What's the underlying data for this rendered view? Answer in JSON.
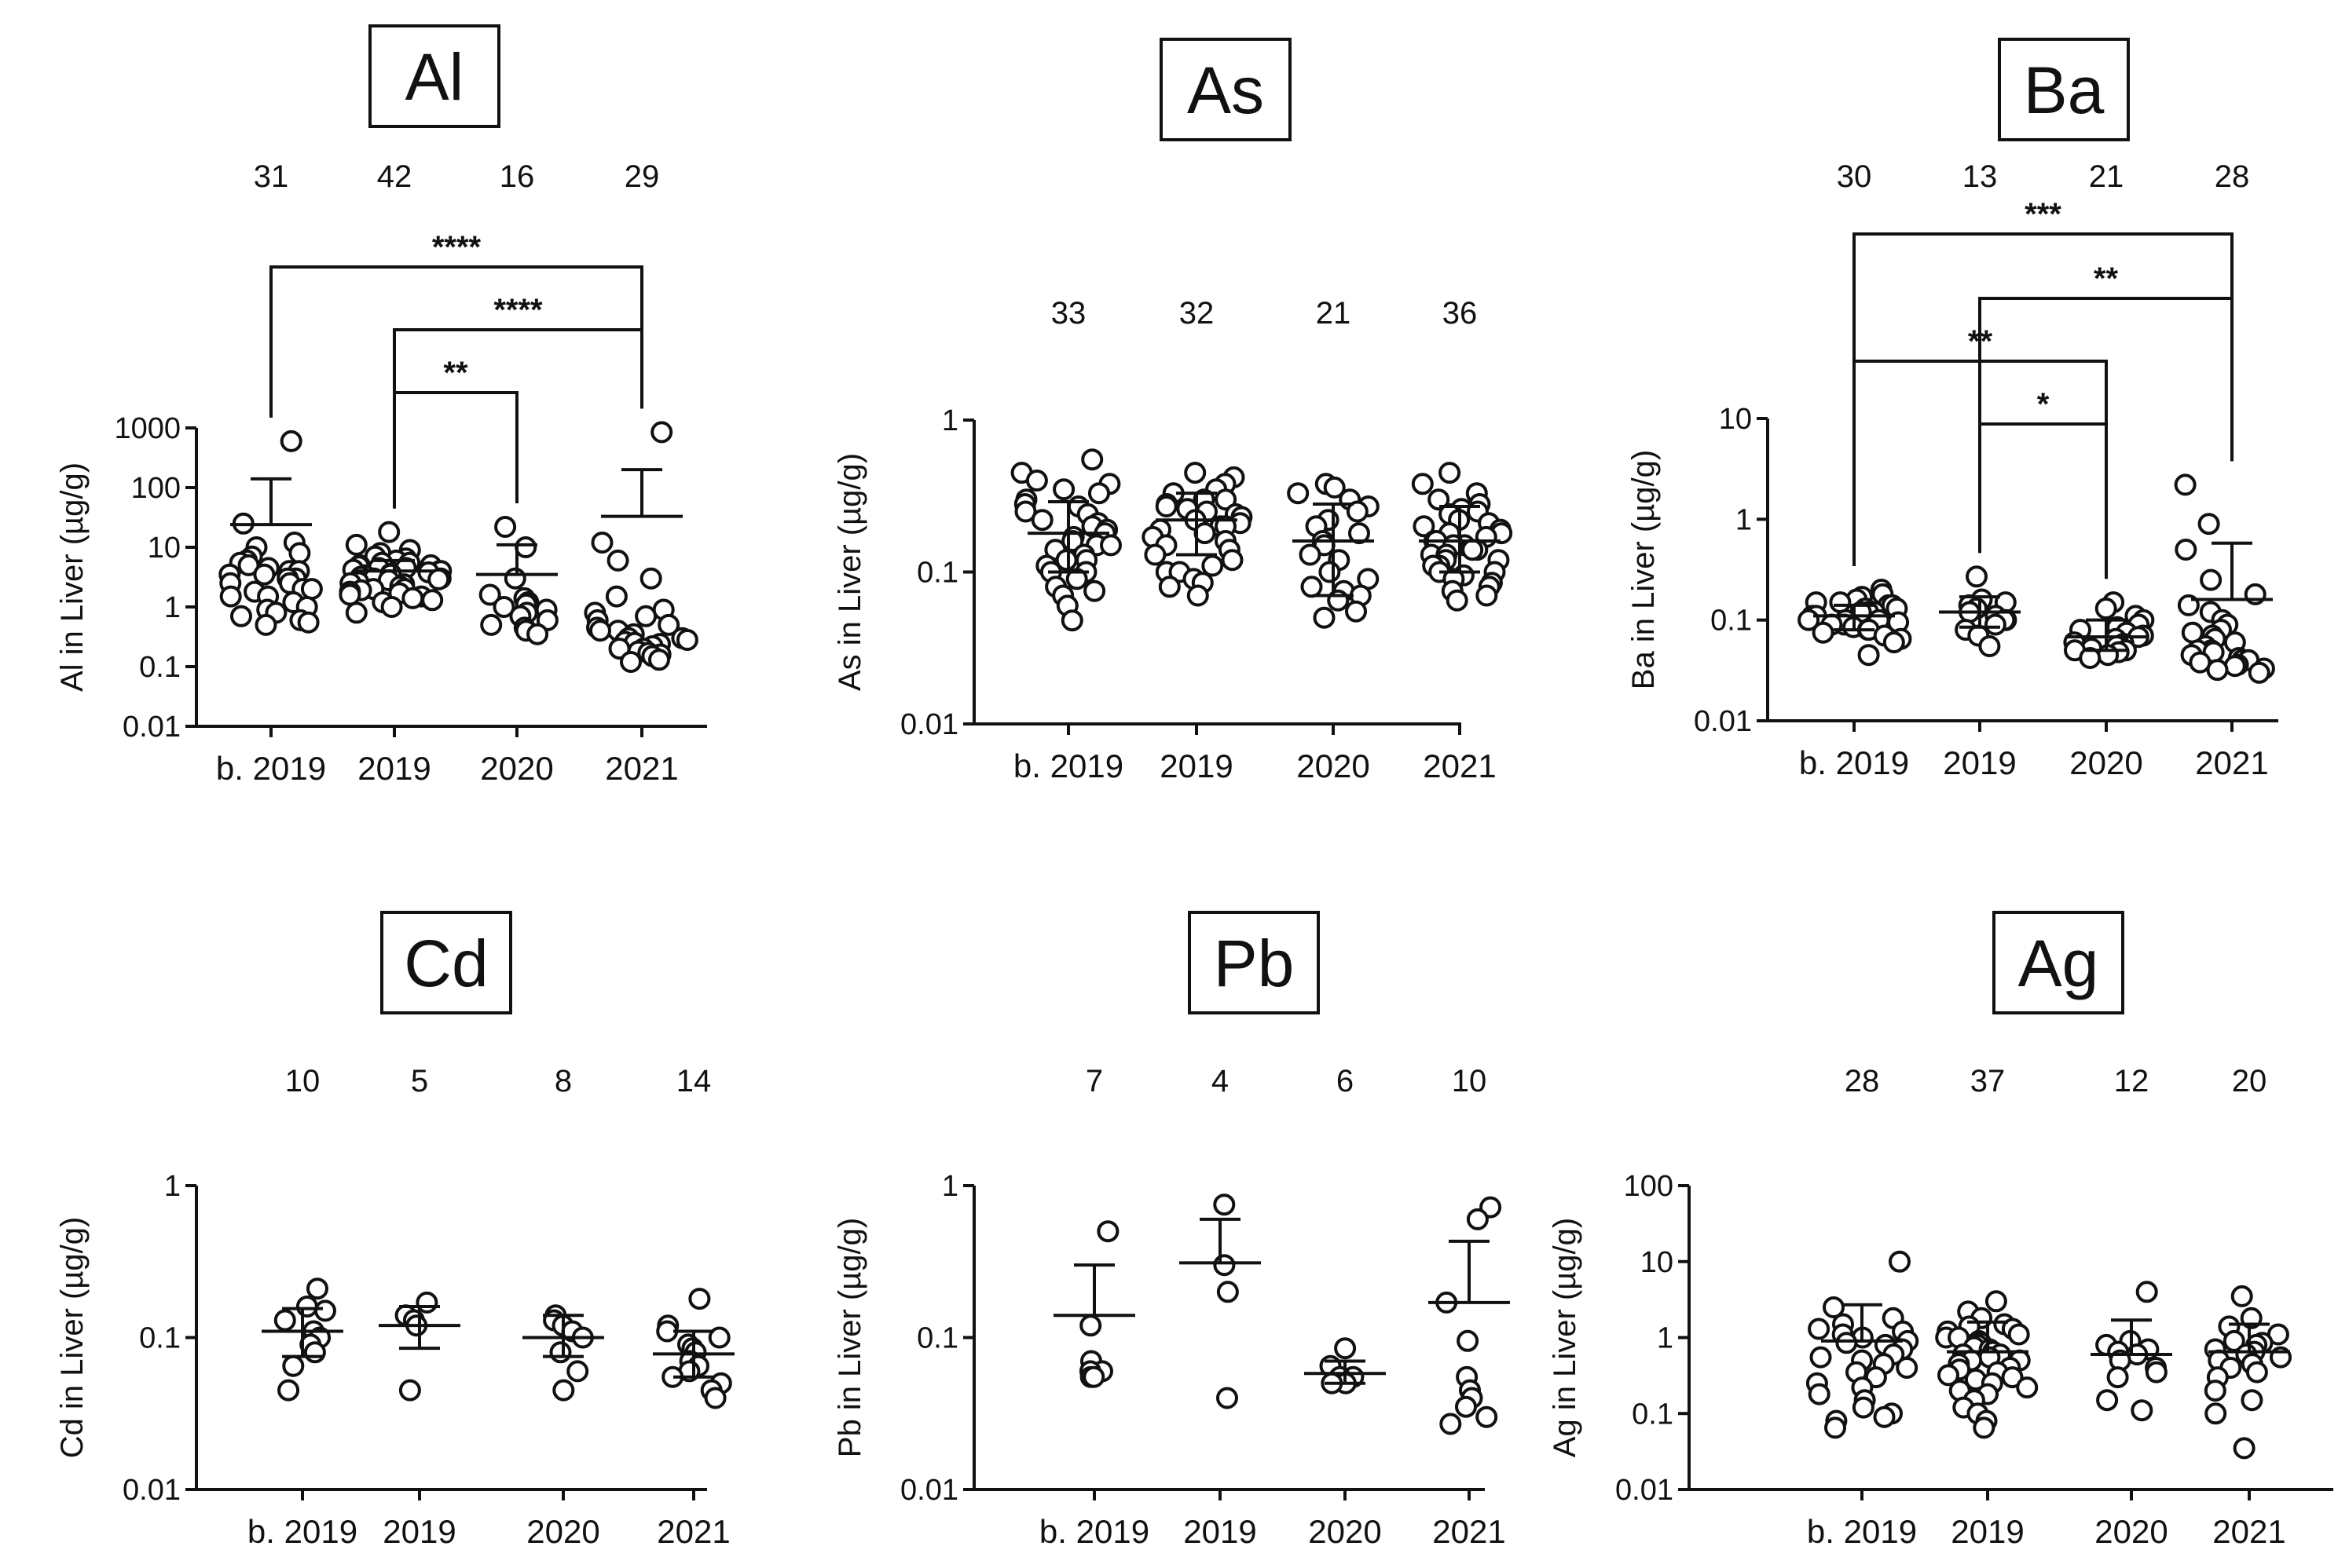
{
  "figure": {
    "background": "#ffffff",
    "ink": "#111111"
  },
  "chart_data": [
    {
      "type": "scatter",
      "title": "Al",
      "ylabel": "Al in Liver (µg/g)",
      "scale": "log",
      "ylim": [
        0.01,
        1000
      ],
      "yticks": [
        "0.01",
        "0.1",
        "1",
        "10",
        "100",
        "1000"
      ],
      "categories": [
        "b. 2019",
        "2019",
        "2020",
        "2021"
      ],
      "n": [
        "31",
        "42",
        "16",
        "29"
      ],
      "summary": [
        {
          "mean": 24,
          "sd_upper": 140
        },
        {
          "mean": 4,
          "sd_upper": 6
        },
        {
          "mean": 3.5,
          "sd_upper": 11
        },
        {
          "mean": 33,
          "sd_upper": 200
        }
      ],
      "points": [
        [
          600,
          25,
          12,
          10,
          8,
          7,
          6,
          5.5,
          5,
          4.5,
          4,
          4,
          3.5,
          3.5,
          3,
          3,
          2.5,
          2.5,
          2,
          2,
          1.8,
          1.5,
          1.5,
          1.2,
          1,
          0.9,
          0.8,
          0.7,
          0.6,
          0.55,
          0.5
        ],
        [
          18,
          11,
          9,
          8,
          7,
          6.5,
          6,
          5.5,
          5.5,
          5,
          5,
          4.8,
          4.5,
          4.5,
          4.2,
          4,
          4,
          3.8,
          3.6,
          3.5,
          3.4,
          3.2,
          3,
          3,
          2.9,
          2.8,
          2.6,
          2.5,
          2.4,
          2.2,
          2,
          2,
          1.9,
          1.8,
          1.7,
          1.6,
          1.5,
          1.4,
          1.3,
          1.2,
          1,
          0.8
        ],
        [
          22,
          10,
          3,
          1.6,
          1.4,
          1.2,
          1.1,
          1,
          0.9,
          0.8,
          0.7,
          0.6,
          0.5,
          0.45,
          0.4,
          0.35
        ],
        [
          850,
          12,
          6,
          3,
          1.5,
          0.9,
          0.8,
          0.7,
          0.6,
          0.5,
          0.45,
          0.4,
          0.4,
          0.35,
          0.3,
          0.3,
          0.28,
          0.26,
          0.25,
          0.24,
          0.22,
          0.2,
          0.2,
          0.18,
          0.17,
          0.16,
          0.15,
          0.13,
          0.12
        ]
      ],
      "comparisons": [
        {
          "from": 0,
          "to": 3,
          "label": "****"
        },
        {
          "from": 1,
          "to": 3,
          "label": "****"
        },
        {
          "from": 1,
          "to": 2,
          "label": "**"
        }
      ]
    },
    {
      "type": "scatter",
      "title": "As",
      "ylabel": "As in Liver (µg/g)",
      "scale": "log",
      "ylim": [
        0.01,
        1
      ],
      "yticks": [
        "0.01",
        "0.1",
        "1"
      ],
      "categories": [
        "b. 2019",
        "2019",
        "2020",
        "2021"
      ],
      "n": [
        "33",
        "32",
        "21",
        "36"
      ],
      "summary": [
        {
          "mean": 0.18,
          "sd_upper": 0.29,
          "sd_lower": 0.1
        },
        {
          "mean": 0.22,
          "sd_upper": 0.33,
          "sd_lower": 0.13
        },
        {
          "mean": 0.16,
          "sd_upper": 0.28,
          "sd_lower": 0.07
        },
        {
          "mean": 0.16,
          "sd_upper": 0.27,
          "sd_lower": 0.1
        }
      ],
      "points": [
        [
          0.55,
          0.45,
          0.4,
          0.38,
          0.35,
          0.33,
          0.3,
          0.28,
          0.27,
          0.25,
          0.24,
          0.22,
          0.21,
          0.2,
          0.19,
          0.18,
          0.17,
          0.16,
          0.15,
          0.15,
          0.14,
          0.13,
          0.12,
          0.12,
          0.11,
          0.1,
          0.1,
          0.09,
          0.08,
          0.075,
          0.07,
          0.06,
          0.048
        ],
        [
          0.45,
          0.42,
          0.38,
          0.35,
          0.33,
          0.3,
          0.3,
          0.28,
          0.27,
          0.26,
          0.25,
          0.24,
          0.23,
          0.22,
          0.21,
          0.2,
          0.2,
          0.19,
          0.18,
          0.17,
          0.16,
          0.15,
          0.14,
          0.13,
          0.12,
          0.11,
          0.1,
          0.1,
          0.09,
          0.085,
          0.08,
          0.07
        ],
        [
          0.38,
          0.36,
          0.33,
          0.3,
          0.27,
          0.25,
          0.22,
          0.2,
          0.18,
          0.16,
          0.15,
          0.13,
          0.12,
          0.1,
          0.09,
          0.08,
          0.075,
          0.07,
          0.065,
          0.055,
          0.05
        ],
        [
          0.45,
          0.38,
          0.33,
          0.3,
          0.28,
          0.26,
          0.25,
          0.24,
          0.22,
          0.21,
          0.2,
          0.19,
          0.18,
          0.18,
          0.17,
          0.16,
          0.16,
          0.15,
          0.15,
          0.14,
          0.14,
          0.13,
          0.13,
          0.12,
          0.12,
          0.11,
          0.11,
          0.1,
          0.1,
          0.095,
          0.09,
          0.085,
          0.08,
          0.075,
          0.07,
          0.065
        ]
      ],
      "comparisons": []
    },
    {
      "type": "scatter",
      "title": "Ba",
      "ylabel": "Ba in Liver (µg/g)",
      "scale": "log",
      "ylim": [
        0.01,
        10
      ],
      "yticks": [
        "0.01",
        "0.1",
        "1",
        "10"
      ],
      "categories": [
        "b. 2019",
        "2019",
        "2020",
        "2021"
      ],
      "n": [
        "30",
        "13",
        "21",
        "28"
      ],
      "summary": [
        {
          "mean": 0.11,
          "sd_upper": 0.14,
          "sd_lower": 0.08
        },
        {
          "mean": 0.12,
          "sd_upper": 0.17,
          "sd_lower": 0.085
        },
        {
          "mean": 0.068,
          "sd_upper": 0.1,
          "sd_lower": 0.05
        },
        {
          "mean": 0.16,
          "sd_upper": 0.58
        }
      ],
      "points": [
        [
          0.2,
          0.18,
          0.17,
          0.16,
          0.15,
          0.15,
          0.14,
          0.14,
          0.13,
          0.13,
          0.12,
          0.12,
          0.12,
          0.11,
          0.11,
          0.11,
          0.1,
          0.1,
          0.1,
          0.095,
          0.09,
          0.09,
          0.085,
          0.08,
          0.08,
          0.075,
          0.07,
          0.065,
          0.06,
          0.045
        ],
        [
          0.27,
          0.16,
          0.15,
          0.14,
          0.13,
          0.12,
          0.11,
          0.1,
          0.1,
          0.09,
          0.08,
          0.07,
          0.055
        ],
        [
          0.15,
          0.13,
          0.11,
          0.1,
          0.09,
          0.085,
          0.08,
          0.075,
          0.07,
          0.068,
          0.065,
          0.06,
          0.058,
          0.055,
          0.055,
          0.052,
          0.05,
          0.05,
          0.048,
          0.045,
          0.042
        ],
        [
          2.2,
          0.9,
          0.5,
          0.25,
          0.18,
          0.14,
          0.12,
          0.1,
          0.09,
          0.08,
          0.075,
          0.07,
          0.065,
          0.06,
          0.055,
          0.05,
          0.05,
          0.048,
          0.045,
          0.042,
          0.04,
          0.04,
          0.038,
          0.036,
          0.035,
          0.033,
          0.032,
          0.03
        ]
      ],
      "comparisons": [
        {
          "from": 0,
          "to": 3,
          "label": "***"
        },
        {
          "from": 1,
          "to": 3,
          "label": "**"
        },
        {
          "from": 0,
          "to": 2,
          "label": "**"
        },
        {
          "from": 1,
          "to": 2,
          "label": "*"
        }
      ]
    },
    {
      "type": "scatter",
      "title": "Cd",
      "ylabel": "Cd in Liver (µg/g)",
      "scale": "log",
      "ylim": [
        0.01,
        1
      ],
      "yticks": [
        "0.01",
        "0.1",
        "1"
      ],
      "categories": [
        "b. 2019",
        "2019",
        "2020",
        "2021"
      ],
      "n": [
        "10",
        "5",
        "8",
        "14"
      ],
      "summary": [
        {
          "mean": 0.11,
          "sd_upper": 0.155,
          "sd_lower": 0.075
        },
        {
          "mean": 0.12,
          "sd_upper": 0.16,
          "sd_lower": 0.085
        },
        {
          "mean": 0.1,
          "sd_upper": 0.14,
          "sd_lower": 0.075
        },
        {
          "mean": 0.078,
          "sd_upper": 0.11,
          "sd_lower": 0.055
        }
      ],
      "points": [
        [
          0.21,
          0.16,
          0.15,
          0.13,
          0.11,
          0.1,
          0.09,
          0.08,
          0.065,
          0.045
        ],
        [
          0.17,
          0.14,
          0.13,
          0.12,
          0.045
        ],
        [
          0.14,
          0.13,
          0.12,
          0.11,
          0.1,
          0.08,
          0.06,
          0.045
        ],
        [
          0.18,
          0.12,
          0.11,
          0.1,
          0.09,
          0.085,
          0.08,
          0.07,
          0.065,
          0.06,
          0.055,
          0.05,
          0.045,
          0.04
        ]
      ],
      "comparisons": []
    },
    {
      "type": "scatter",
      "title": "Pb",
      "ylabel": "Pb in Liver (µg/g)",
      "scale": "log",
      "ylim": [
        0.01,
        1
      ],
      "yticks": [
        "0.01",
        "0.1",
        "1"
      ],
      "categories": [
        "b. 2019",
        "2019",
        "2020",
        "2021"
      ],
      "n": [
        "7",
        "4",
        "6",
        "10"
      ],
      "summary": [
        {
          "mean": 0.14,
          "sd_upper": 0.3
        },
        {
          "mean": 0.31,
          "sd_upper": 0.6
        },
        {
          "mean": 0.058,
          "sd_upper": 0.07,
          "sd_lower": 0.05
        },
        {
          "mean": 0.17,
          "sd_upper": 0.43
        }
      ],
      "points": [
        [
          0.5,
          0.12,
          0.07,
          0.06,
          0.06,
          0.055,
          0.055
        ],
        [
          0.75,
          0.3,
          0.2,
          0.04
        ],
        [
          0.085,
          0.065,
          0.055,
          0.055,
          0.05,
          0.05
        ],
        [
          0.72,
          0.6,
          0.17,
          0.095,
          0.055,
          0.045,
          0.04,
          0.035,
          0.03,
          0.027
        ]
      ],
      "comparisons": []
    },
    {
      "type": "scatter",
      "title": "Ag",
      "ylabel": "Ag in Liver (µg/g)",
      "scale": "log",
      "ylim": [
        0.01,
        100
      ],
      "yticks": [
        "0.01",
        "0.1",
        "1",
        "10",
        "100"
      ],
      "categories": [
        "b. 2019",
        "2019",
        "2020",
        "2021"
      ],
      "n": [
        "28",
        "37",
        "12",
        "20"
      ],
      "summary": [
        {
          "mean": 0.9,
          "sd_upper": 2.7
        },
        {
          "mean": 0.65,
          "sd_upper": 1.6
        },
        {
          "mean": 0.6,
          "sd_upper": 1.7
        },
        {
          "mean": 0.65,
          "sd_upper": 1.5
        }
      ],
      "points": [
        [
          10,
          2.5,
          1.8,
          1.5,
          1.3,
          1.2,
          1.1,
          1,
          0.9,
          0.85,
          0.8,
          0.7,
          0.6,
          0.55,
          0.5,
          0.45,
          0.4,
          0.35,
          0.3,
          0.25,
          0.22,
          0.18,
          0.15,
          0.12,
          0.1,
          0.09,
          0.08,
          0.065
        ],
        [
          3,
          2.2,
          1.8,
          1.5,
          1.4,
          1.3,
          1.2,
          1.1,
          1,
          1,
          0.9,
          0.85,
          0.8,
          0.75,
          0.7,
          0.65,
          0.6,
          0.6,
          0.55,
          0.5,
          0.5,
          0.45,
          0.4,
          0.38,
          0.35,
          0.32,
          0.3,
          0.28,
          0.25,
          0.22,
          0.2,
          0.18,
          0.15,
          0.12,
          0.1,
          0.08,
          0.065
        ],
        [
          4,
          0.9,
          0.8,
          0.7,
          0.65,
          0.6,
          0.5,
          0.4,
          0.35,
          0.3,
          0.15,
          0.11
        ],
        [
          3.5,
          1.8,
          1.4,
          1.1,
          0.9,
          0.85,
          0.8,
          0.7,
          0.65,
          0.6,
          0.55,
          0.5,
          0.45,
          0.4,
          0.35,
          0.3,
          0.2,
          0.15,
          0.1,
          0.035
        ]
      ],
      "comparisons": []
    }
  ]
}
